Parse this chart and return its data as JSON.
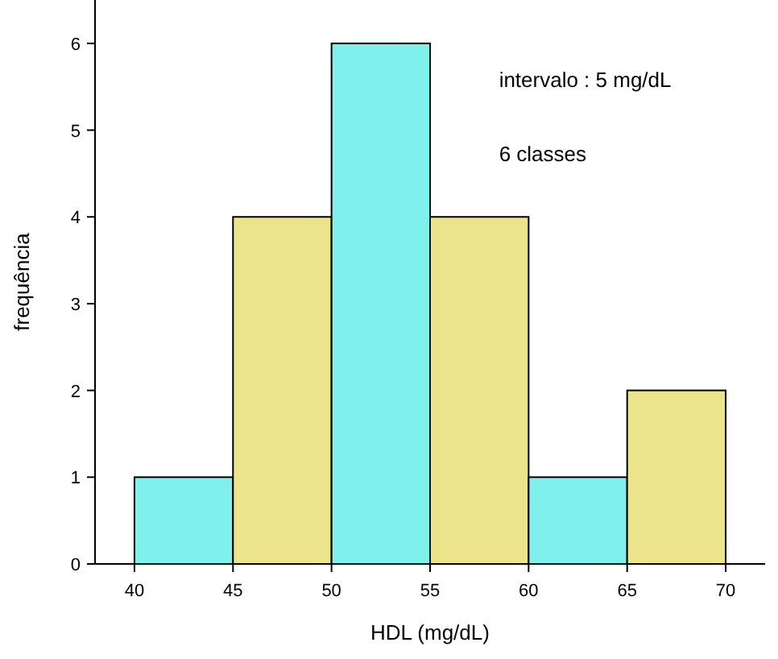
{
  "chart_data": {
    "type": "histogram",
    "xlabel": "HDL (mg/dL)",
    "ylabel": "frequência",
    "bins": [
      40,
      45,
      50,
      55,
      60,
      65,
      70
    ],
    "values": [
      1,
      4,
      6,
      4,
      1,
      2
    ],
    "colors": [
      "#80f0ec",
      "#ece48a",
      "#80f0ec",
      "#ece48a",
      "#80f0ec",
      "#ece48a"
    ],
    "xlim": [
      38,
      72
    ],
    "xticks": [
      40,
      45,
      50,
      55,
      60,
      65,
      70
    ],
    "ylim": [
      0,
      6.5
    ],
    "yticks": [
      0,
      1,
      2,
      3,
      4,
      5,
      6
    ],
    "annotations": [
      "intervalo : 5 mg/dL",
      "6 classes"
    ],
    "grid": false
  }
}
